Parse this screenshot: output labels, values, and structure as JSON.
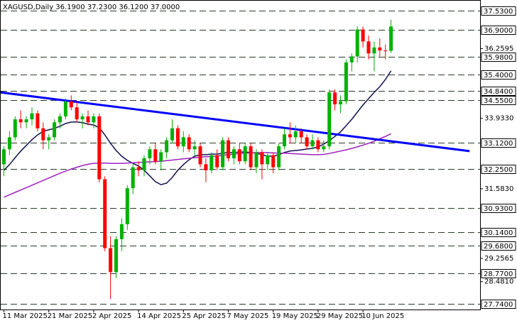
{
  "chart_data": {
    "type": "candlestick",
    "title": "XAGUSD,Daily  36.1900 37.2300 36.1200 37.0000",
    "categories": [
      "11 Mar 2025",
      null,
      null,
      null,
      null,
      null,
      null,
      null,
      "21 Mar 2025",
      null,
      null,
      null,
      null,
      null,
      null,
      null,
      "2 Apr 2025",
      null,
      null,
      null,
      null,
      null,
      null,
      null,
      "14 Apr 2025",
      null,
      null,
      null,
      null,
      null,
      null,
      null,
      "25 Apr 2025",
      null,
      null,
      null,
      null,
      null,
      null,
      null,
      "7 May 2025",
      null,
      null,
      null,
      null,
      null,
      null,
      null,
      "19 May 2025",
      null,
      null,
      null,
      null,
      null,
      null,
      null,
      "29 May 2025",
      null,
      null,
      null,
      null,
      null,
      null,
      null,
      "10 Jun 2025",
      null,
      null,
      null,
      null,
      null
    ],
    "open": [
      32.4,
      32.9,
      33.3,
      33.9,
      33.8,
      33.9,
      34.1,
      33.6,
      33.2,
      33.3,
      33.8,
      34.0,
      34.5,
      34.3,
      33.9,
      34.0,
      33.8,
      34.0,
      31.9,
      29.6,
      28.8,
      29.9,
      30.4,
      31.6,
      32.3,
      32.2,
      32.6,
      32.9,
      32.5,
      32.8,
      33.2,
      33.6,
      33.0,
      33.3,
      32.9,
      33.0,
      32.4,
      32.2,
      32.7,
      32.3,
      33.2,
      32.6,
      32.9,
      32.5,
      33.0,
      32.3,
      32.8,
      32.4,
      32.7,
      32.3,
      33.0,
      33.4,
      33.3,
      33.5,
      33.3,
      33.0,
      33.2,
      32.9,
      33.0,
      34.8,
      34.4,
      34.5,
      35.8,
      36.0,
      36.9,
      36.5,
      36.1,
      36.3,
      36.2,
      36.19
    ],
    "high": [
      33.0,
      33.5,
      34.0,
      34.2,
      34.0,
      34.3,
      34.2,
      33.8,
      33.4,
      33.9,
      34.1,
      34.6,
      34.7,
      34.5,
      34.1,
      34.2,
      34.1,
      34.1,
      32.0,
      30.0,
      30.0,
      30.6,
      31.7,
      32.4,
      32.5,
      32.7,
      33.0,
      33.1,
      32.9,
      33.3,
      33.9,
      33.7,
      33.5,
      33.4,
      33.2,
      33.1,
      32.6,
      32.8,
      32.9,
      33.3,
      33.3,
      33.0,
      33.1,
      33.1,
      33.1,
      32.9,
      32.9,
      32.8,
      32.8,
      33.1,
      33.6,
      33.8,
      33.7,
      33.6,
      33.4,
      33.4,
      33.3,
      33.2,
      34.9,
      34.9,
      34.7,
      35.9,
      36.1,
      37.0,
      37.0,
      36.7,
      36.5,
      36.6,
      36.4,
      37.23
    ],
    "low": [
      32.0,
      32.7,
      33.2,
      33.6,
      33.6,
      33.7,
      33.5,
      32.9,
      32.9,
      33.2,
      33.6,
      33.9,
      34.2,
      33.8,
      33.6,
      33.7,
      33.6,
      31.8,
      29.5,
      27.9,
      28.6,
      29.5,
      30.2,
      31.4,
      32.0,
      32.0,
      32.4,
      32.4,
      32.2,
      32.6,
      33.1,
      32.9,
      32.8,
      32.8,
      32.7,
      32.3,
      31.8,
      32.1,
      32.2,
      32.2,
      32.5,
      32.4,
      32.4,
      32.4,
      32.2,
      32.1,
      31.9,
      32.2,
      32.1,
      32.2,
      32.9,
      33.1,
      33.1,
      33.1,
      32.9,
      32.9,
      32.8,
      32.8,
      32.9,
      34.2,
      34.1,
      34.4,
      35.5,
      35.8,
      36.3,
      35.9,
      35.5,
      36.0,
      35.9,
      36.12
    ],
    "close": [
      32.9,
      33.3,
      33.9,
      33.8,
      33.9,
      34.1,
      33.6,
      33.2,
      33.3,
      33.8,
      34.0,
      34.5,
      34.3,
      33.9,
      34.0,
      33.8,
      34.0,
      31.9,
      29.6,
      28.8,
      29.9,
      30.4,
      31.6,
      32.3,
      32.2,
      32.6,
      32.9,
      32.5,
      32.8,
      33.2,
      33.6,
      33.0,
      33.3,
      32.9,
      33.0,
      32.4,
      32.2,
      32.7,
      32.3,
      33.2,
      32.6,
      32.9,
      32.5,
      33.0,
      32.3,
      32.8,
      32.4,
      32.7,
      32.3,
      33.0,
      33.4,
      33.3,
      33.5,
      33.3,
      33.0,
      33.2,
      32.9,
      33.0,
      34.8,
      34.4,
      34.5,
      35.8,
      36.0,
      36.9,
      36.5,
      36.1,
      36.3,
      36.2,
      36.19,
      37.0
    ],
    "up_color": "#00b000",
    "down_color": "#ff0000",
    "moving_averages": [
      {
        "color": "#101050",
        "values": [
          32.2,
          32.39,
          32.62,
          32.84,
          33.03,
          33.22,
          33.38,
          33.5,
          33.55,
          33.6,
          33.67,
          33.76,
          33.81,
          33.81,
          33.79,
          33.74,
          33.71,
          33.62,
          33.38,
          33.1,
          32.86,
          32.67,
          32.53,
          32.43,
          32.34,
          32.2,
          32.01,
          31.82,
          31.72,
          31.77,
          31.96,
          32.2,
          32.39,
          32.55,
          32.67,
          32.72,
          32.72,
          32.74,
          32.74,
          32.77,
          32.79,
          32.79,
          32.81,
          32.81,
          32.79,
          32.77,
          32.72,
          32.67,
          32.67,
          32.72,
          32.79,
          32.84,
          32.86,
          32.88,
          32.91,
          32.93,
          32.98,
          33.07,
          33.19,
          33.33,
          33.48,
          33.69,
          33.9,
          34.14,
          34.38,
          34.59,
          34.8,
          34.99,
          35.23,
          35.52
        ]
      },
      {
        "color": "#a020c0",
        "values": [
          31.3,
          31.38,
          31.46,
          31.54,
          31.62,
          31.7,
          31.78,
          31.86,
          31.94,
          32.02,
          32.1,
          32.17,
          32.24,
          32.3,
          32.36,
          32.4,
          32.43,
          32.44,
          32.44,
          32.43,
          32.43,
          32.43,
          32.44,
          32.45,
          32.46,
          32.47,
          32.48,
          32.49,
          32.5,
          32.52,
          32.54,
          32.56,
          32.58,
          32.6,
          32.62,
          32.64,
          32.65,
          32.66,
          32.68,
          32.7,
          32.72,
          32.74,
          32.76,
          32.77,
          32.78,
          32.79,
          32.79,
          32.79,
          32.78,
          32.77,
          32.77,
          32.76,
          32.75,
          32.74,
          32.73,
          32.72,
          32.72,
          32.73,
          32.76,
          32.8,
          32.84,
          32.88,
          32.93,
          32.98,
          33.04,
          33.1,
          33.17,
          33.25,
          33.33,
          33.42
        ]
      }
    ],
    "trendline": {
      "color": "#0000ff",
      "x": [
        -0.6,
        83
      ],
      "values": [
        34.8,
        32.84
      ]
    },
    "ylim": [
      27.55,
      37.885
    ],
    "yticks": [
      {
        "value": 36.2595,
        "label": "36.2595"
      },
      {
        "value": 33.933,
        "label": "33.9330"
      },
      {
        "value": 31.583,
        "label": "31.5830"
      },
      {
        "value": 29.2565,
        "label": "29.2565"
      },
      {
        "value": 28.481,
        "label": "28.4810"
      }
    ],
    "levels": [
      {
        "value": 37.53,
        "label": "37.5300"
      },
      {
        "value": 36.9,
        "label": "36.9000"
      },
      {
        "value": 35.98,
        "label": "35.9800"
      },
      {
        "value": 35.4,
        "label": "35.4000"
      },
      {
        "value": 34.84,
        "label": "34.8400"
      },
      {
        "value": 34.55,
        "label": "34.5500"
      },
      {
        "value": 33.12,
        "label": "33.1200"
      },
      {
        "value": 32.25,
        "label": "32.2500"
      },
      {
        "value": 30.93,
        "label": "30.9300"
      },
      {
        "value": 30.14,
        "label": "30.1400"
      },
      {
        "value": 29.68,
        "label": "29.6800"
      },
      {
        "value": 28.77,
        "label": "28.7700"
      },
      {
        "value": 27.74,
        "label": "27.7400"
      }
    ]
  }
}
